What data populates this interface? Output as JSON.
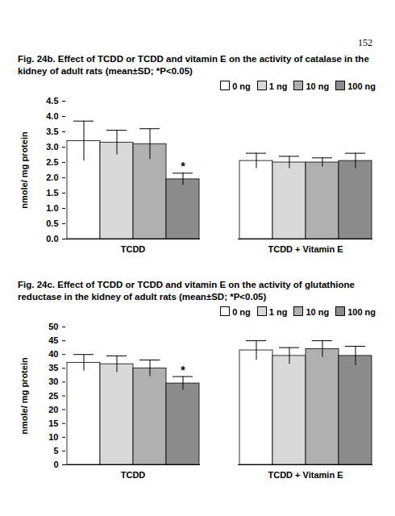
{
  "page_number": "152",
  "chart_data": [
    {
      "type": "bar",
      "title": "Fig. 24b. Effect of TCDD or TCDD and vitamin E on the activity of catalase in the kidney of adult rats (mean±SD; *P<0.05)",
      "y_label": "nmole/ mg protein",
      "categories": [
        "TCDD",
        "TCDD + Vitamin E"
      ],
      "series": [
        {
          "name": "0 ng",
          "color": "#ffffff",
          "values": [
            3.2,
            2.55
          ],
          "errors": [
            0.65,
            0.25
          ]
        },
        {
          "name": "1 ng",
          "color": "#d9d9d9",
          "values": [
            3.15,
            2.5
          ],
          "errors": [
            0.4,
            0.2
          ]
        },
        {
          "name": "10 ng",
          "color": "#b0b0b0",
          "values": [
            3.1,
            2.5
          ],
          "errors": [
            0.5,
            0.15
          ]
        },
        {
          "name": "100 ng",
          "color": "#8c8c8c",
          "values": [
            1.95,
            2.55
          ],
          "errors": [
            0.2,
            0.25
          ]
        }
      ],
      "annotations": [
        {
          "category": "TCDD",
          "series": "100 ng",
          "text": "*"
        }
      ],
      "ylim": [
        0,
        4.5
      ],
      "yticks": [
        0,
        0.5,
        1,
        1.5,
        2,
        2.5,
        3,
        3.5,
        4,
        4.5
      ],
      "legend": "top-right"
    },
    {
      "type": "bar",
      "title": "Fig. 24c. Effect of TCDD or TCDD and vitamin E on the activity of glutathione reductase in the kidney of adult rats (mean±SD; *P<0.05)",
      "y_label": "nmole/ mg protein",
      "categories": [
        "TCDD",
        "TCDD + Vitamin E"
      ],
      "series": [
        {
          "name": "0 ng",
          "color": "#ffffff",
          "values": [
            37,
            41.5
          ],
          "errors": [
            3,
            3.5
          ]
        },
        {
          "name": "1 ng",
          "color": "#d9d9d9",
          "values": [
            36.5,
            39.5
          ],
          "errors": [
            3,
            3
          ]
        },
        {
          "name": "10 ng",
          "color": "#b0b0b0",
          "values": [
            35,
            42
          ],
          "errors": [
            3,
            3
          ]
        },
        {
          "name": "100 ng",
          "color": "#8c8c8c",
          "values": [
            29.5,
            39.5
          ],
          "errors": [
            2.5,
            3.5
          ]
        }
      ],
      "annotations": [
        {
          "category": "TCDD",
          "series": "100 ng",
          "text": "*"
        }
      ],
      "ylim": [
        0,
        50
      ],
      "yticks": [
        0,
        5,
        10,
        15,
        20,
        25,
        30,
        35,
        40,
        45,
        50
      ],
      "legend": "top-right"
    }
  ]
}
